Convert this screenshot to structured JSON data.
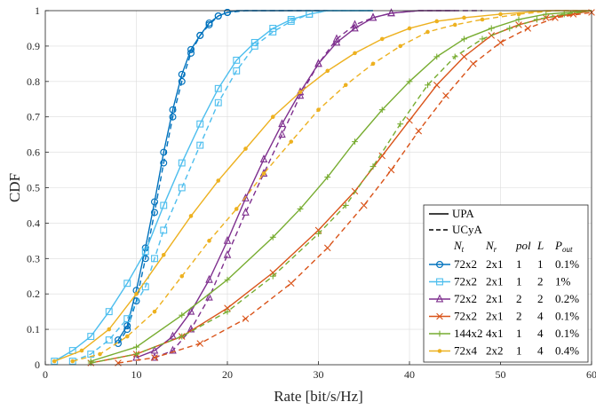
{
  "chart_data": {
    "type": "line",
    "title": "",
    "xlabel": "Rate [bit/s/Hz]",
    "ylabel": "CDF",
    "xlim": [
      0,
      60
    ],
    "ylim": [
      0,
      1
    ],
    "xticks": [
      0,
      10,
      20,
      30,
      40,
      50,
      60
    ],
    "yticks": [
      0,
      0.1,
      0.2,
      0.3,
      0.4,
      0.5,
      0.6,
      0.7,
      0.8,
      0.9,
      1
    ],
    "grid": true,
    "legend_position": "bottom-right",
    "legend": {
      "styles": [
        {
          "label": "UPA",
          "dash": "solid"
        },
        {
          "label": "UCyA",
          "dash": "dashed"
        }
      ],
      "columns": [
        "N_t",
        "N_r",
        "pol",
        "L",
        "P_out"
      ],
      "column_labels": {
        "N_t": {
          "base": "N",
          "sub": "t"
        },
        "N_r": {
          "base": "N",
          "sub": "r"
        },
        "pol": {
          "base": "pol",
          "sub": ""
        },
        "L": {
          "base": "L",
          "sub": ""
        },
        "P_out": {
          "base": "P",
          "sub": "out"
        }
      }
    },
    "series": [
      {
        "nt": "72x2",
        "nr": "2x1",
        "pol": "1",
        "L": "1",
        "pout": "0.1%",
        "color": "#0072bd",
        "marker": "circle",
        "solid": [
          [
            8,
            0.07
          ],
          [
            9,
            0.11
          ],
          [
            10,
            0.21
          ],
          [
            11,
            0.33
          ],
          [
            12,
            0.46
          ],
          [
            13,
            0.6
          ],
          [
            14,
            0.72
          ],
          [
            15,
            0.82
          ],
          [
            16,
            0.89
          ],
          [
            17,
            0.93
          ],
          [
            18,
            0.965
          ],
          [
            19,
            0.985
          ],
          [
            20,
            0.995
          ],
          [
            21,
            1
          ],
          [
            30,
            1
          ],
          [
            36,
            1
          ]
        ],
        "dashed": [
          [
            8,
            0.06
          ],
          [
            9,
            0.1
          ],
          [
            10,
            0.18
          ],
          [
            11,
            0.3
          ],
          [
            12,
            0.43
          ],
          [
            13,
            0.57
          ],
          [
            14,
            0.7
          ],
          [
            15,
            0.8
          ],
          [
            16,
            0.88
          ],
          [
            17,
            0.93
          ],
          [
            18,
            0.96
          ],
          [
            19,
            0.985
          ],
          [
            20,
            0.995
          ],
          [
            22,
            1
          ],
          [
            36,
            1
          ]
        ]
      },
      {
        "nt": "72x2",
        "nr": "2x1",
        "pol": "1",
        "L": "2",
        "pout": "1%",
        "color": "#4dbeee",
        "marker": "square",
        "solid": [
          [
            1,
            0.01
          ],
          [
            3,
            0.04
          ],
          [
            5,
            0.08
          ],
          [
            7,
            0.15
          ],
          [
            9,
            0.23
          ],
          [
            11,
            0.32
          ],
          [
            13,
            0.45
          ],
          [
            15,
            0.57
          ],
          [
            17,
            0.68
          ],
          [
            19,
            0.78
          ],
          [
            21,
            0.86
          ],
          [
            23,
            0.91
          ],
          [
            25,
            0.95
          ],
          [
            27,
            0.975
          ],
          [
            29,
            0.99
          ],
          [
            31,
            1
          ],
          [
            36,
            1
          ]
        ],
        "dashed": [
          [
            3,
            0.01
          ],
          [
            5,
            0.03
          ],
          [
            7,
            0.07
          ],
          [
            9,
            0.13
          ],
          [
            11,
            0.22
          ],
          [
            12,
            0.3
          ],
          [
            13,
            0.38
          ],
          [
            15,
            0.5
          ],
          [
            17,
            0.62
          ],
          [
            19,
            0.74
          ],
          [
            21,
            0.83
          ],
          [
            23,
            0.9
          ],
          [
            25,
            0.94
          ],
          [
            27,
            0.97
          ],
          [
            29,
            0.99
          ],
          [
            31,
            1
          ],
          [
            36,
            1
          ]
        ]
      },
      {
        "nt": "72x2",
        "nr": "2x1",
        "pol": "2",
        "L": "2",
        "pout": "0.2%",
        "color": "#7e2f8e",
        "marker": "triangle",
        "solid": [
          [
            10,
            0.02
          ],
          [
            12,
            0.04
          ],
          [
            14,
            0.08
          ],
          [
            16,
            0.15
          ],
          [
            18,
            0.24
          ],
          [
            20,
            0.35
          ],
          [
            22,
            0.47
          ],
          [
            24,
            0.58
          ],
          [
            26,
            0.68
          ],
          [
            28,
            0.77
          ],
          [
            30,
            0.85
          ],
          [
            32,
            0.91
          ],
          [
            34,
            0.95
          ],
          [
            36,
            0.98
          ],
          [
            38,
            0.993
          ],
          [
            41,
            1
          ],
          [
            45,
            1
          ]
        ],
        "dashed": [
          [
            12,
            0.02
          ],
          [
            14,
            0.04
          ],
          [
            16,
            0.1
          ],
          [
            18,
            0.19
          ],
          [
            20,
            0.31
          ],
          [
            22,
            0.43
          ],
          [
            24,
            0.54
          ],
          [
            26,
            0.65
          ],
          [
            28,
            0.76
          ],
          [
            30,
            0.85
          ],
          [
            32,
            0.92
          ],
          [
            34,
            0.96
          ],
          [
            36,
            0.98
          ],
          [
            38,
            0.993
          ],
          [
            41,
            1
          ],
          [
            48,
            1
          ]
        ]
      },
      {
        "nt": "72x2",
        "nr": "2x1",
        "pol": "2",
        "L": "4",
        "pout": "0.1%",
        "color": "#d95319",
        "marker": "x",
        "solid": [
          [
            5,
            0.005
          ],
          [
            10,
            0.03
          ],
          [
            15,
            0.08
          ],
          [
            20,
            0.16
          ],
          [
            25,
            0.26
          ],
          [
            30,
            0.38
          ],
          [
            34,
            0.49
          ],
          [
            37,
            0.59
          ],
          [
            40,
            0.69
          ],
          [
            43,
            0.79
          ],
          [
            46,
            0.87
          ],
          [
            49,
            0.93
          ],
          [
            52,
            0.96
          ],
          [
            55,
            0.98
          ],
          [
            58,
            0.99
          ],
          [
            60,
            1
          ]
        ],
        "dashed": [
          [
            8,
            0.005
          ],
          [
            12,
            0.02
          ],
          [
            17,
            0.06
          ],
          [
            22,
            0.13
          ],
          [
            27,
            0.23
          ],
          [
            31,
            0.33
          ],
          [
            35,
            0.45
          ],
          [
            38,
            0.55
          ],
          [
            41,
            0.66
          ],
          [
            44,
            0.76
          ],
          [
            47,
            0.85
          ],
          [
            50,
            0.91
          ],
          [
            53,
            0.95
          ],
          [
            56,
            0.98
          ],
          [
            60,
            0.995
          ]
        ]
      },
      {
        "nt": "144x2",
        "nr": "4x1",
        "pol": "1",
        "L": "4",
        "pout": "0.1%",
        "color": "#77ac30",
        "marker": "plus",
        "solid": [
          [
            5,
            0.01
          ],
          [
            10,
            0.05
          ],
          [
            15,
            0.14
          ],
          [
            20,
            0.24
          ],
          [
            25,
            0.36
          ],
          [
            28,
            0.44
          ],
          [
            31,
            0.53
          ],
          [
            34,
            0.63
          ],
          [
            37,
            0.72
          ],
          [
            40,
            0.8
          ],
          [
            43,
            0.87
          ],
          [
            46,
            0.92
          ],
          [
            49,
            0.95
          ],
          [
            52,
            0.975
          ],
          [
            55,
            0.99
          ],
          [
            60,
            1
          ]
        ],
        "dashed": [
          [
            5,
            0.005
          ],
          [
            10,
            0.03
          ],
          [
            15,
            0.08
          ],
          [
            20,
            0.15
          ],
          [
            25,
            0.25
          ],
          [
            30,
            0.37
          ],
          [
            33,
            0.45
          ],
          [
            36,
            0.56
          ],
          [
            39,
            0.68
          ],
          [
            42,
            0.79
          ],
          [
            45,
            0.87
          ],
          [
            48,
            0.92
          ],
          [
            51,
            0.95
          ],
          [
            54,
            0.975
          ],
          [
            57,
            0.99
          ],
          [
            60,
            1
          ]
        ]
      },
      {
        "nt": "72x4",
        "nr": "2x2",
        "pol": "1",
        "L": "4",
        "pout": "0.4%",
        "color": "#edb120",
        "marker": "dot",
        "solid": [
          [
            1,
            0.01
          ],
          [
            4,
            0.04
          ],
          [
            7,
            0.1
          ],
          [
            10,
            0.2
          ],
          [
            13,
            0.31
          ],
          [
            16,
            0.42
          ],
          [
            19,
            0.52
          ],
          [
            22,
            0.61
          ],
          [
            25,
            0.7
          ],
          [
            28,
            0.77
          ],
          [
            31,
            0.83
          ],
          [
            34,
            0.88
          ],
          [
            37,
            0.92
          ],
          [
            40,
            0.95
          ],
          [
            43,
            0.97
          ],
          [
            46,
            0.98
          ],
          [
            50,
            0.99
          ],
          [
            55,
            1
          ],
          [
            60,
            1
          ]
        ],
        "dashed": [
          [
            3,
            0.01
          ],
          [
            6,
            0.03
          ],
          [
            9,
            0.08
          ],
          [
            12,
            0.15
          ],
          [
            15,
            0.25
          ],
          [
            18,
            0.35
          ],
          [
            21,
            0.44
          ],
          [
            24,
            0.54
          ],
          [
            27,
            0.63
          ],
          [
            30,
            0.72
          ],
          [
            33,
            0.79
          ],
          [
            36,
            0.85
          ],
          [
            39,
            0.9
          ],
          [
            42,
            0.94
          ],
          [
            45,
            0.96
          ],
          [
            48,
            0.975
          ],
          [
            52,
            0.99
          ],
          [
            56,
            1
          ],
          [
            60,
            1
          ]
        ]
      }
    ]
  }
}
